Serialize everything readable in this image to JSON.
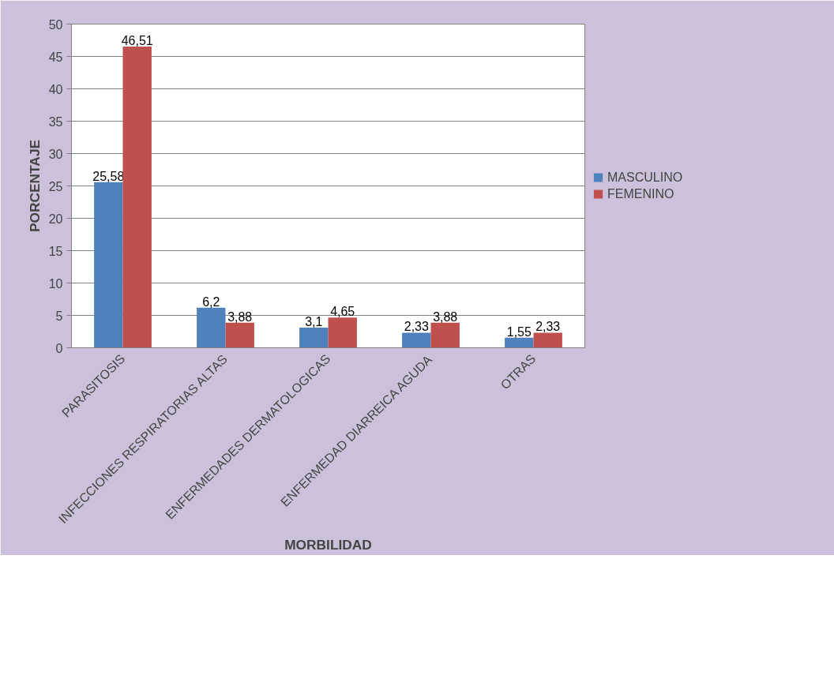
{
  "chart_data": {
    "type": "bar",
    "categories": [
      "PARASITOSIS",
      "INFECCIONES RESPIRATORIAS ALTAS",
      "ENFERMEDADES DERMATOLOGICAS",
      "ENFERMEDAD DIARREICA AGUDA",
      "OTRAS"
    ],
    "series": [
      {
        "name": "MASCULINO",
        "color": "#4f81bd",
        "values": [
          25.58,
          6.2,
          3.1,
          2.33,
          1.55
        ],
        "value_labels": [
          "25,58",
          "6,2",
          "3,1",
          "2,33",
          "1,55"
        ]
      },
      {
        "name": "FEMENINO",
        "color": "#c0504d",
        "values": [
          46.51,
          3.88,
          4.65,
          3.88,
          2.33
        ],
        "value_labels": [
          "46,51",
          "3,88",
          "4,65",
          "3,88",
          "2,33"
        ]
      }
    ],
    "xlabel": "MORBILIDAD",
    "ylabel": "PORCENTAJE",
    "ylim": [
      0,
      50
    ],
    "yticks": [
      0,
      5,
      10,
      15,
      20,
      25,
      30,
      35,
      40,
      45,
      50
    ],
    "grid": "y",
    "legend": "right"
  }
}
